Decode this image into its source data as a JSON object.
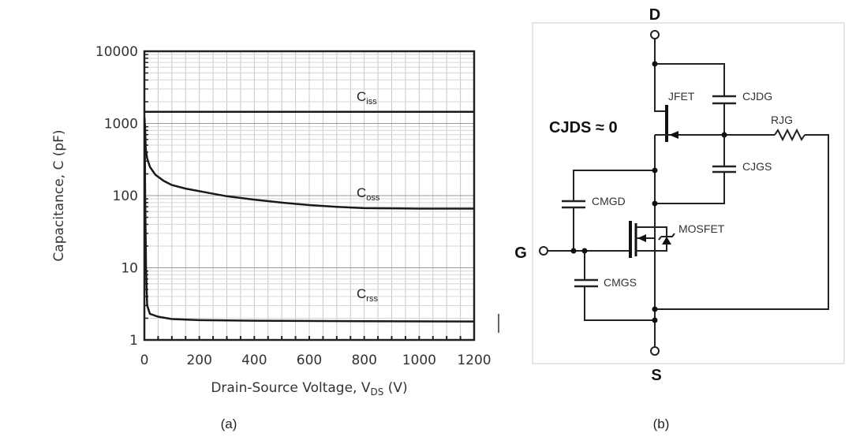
{
  "chart_data": {
    "type": "line",
    "panel_label": "(a)",
    "xlabel": "Drain-Source Voltage, V",
    "xlabel_sub": "DS",
    "xlabel_unit": " (V)",
    "ylabel": "Capacitance, C (pF)",
    "xlim": [
      0,
      1200
    ],
    "ylim": [
      1,
      10000
    ],
    "yscale": "log",
    "grid": true,
    "x_ticks": [
      "0",
      "200",
      "400",
      "600",
      "800",
      "1000",
      "1200"
    ],
    "y_ticks": [
      "1",
      "10",
      "100",
      "1000",
      "10000"
    ],
    "series": [
      {
        "name": "C",
        "sub": "iss",
        "x": [
          0,
          1200
        ],
        "y": [
          1450,
          1450
        ]
      },
      {
        "name": "C",
        "sub": "oss",
        "x": [
          2,
          5,
          10,
          20,
          40,
          70,
          100,
          150,
          200,
          300,
          400,
          500,
          600,
          700,
          800,
          1000,
          1200
        ],
        "y": [
          1000,
          450,
          330,
          250,
          195,
          160,
          140,
          125,
          115,
          98,
          88,
          80,
          74,
          70,
          67,
          66,
          66
        ]
      },
      {
        "name": "C",
        "sub": "rss",
        "x": [
          1,
          3,
          6,
          10,
          20,
          50,
          100,
          200,
          400,
          800,
          1200
        ],
        "y": [
          1200,
          100,
          10,
          3,
          2.3,
          2.1,
          1.95,
          1.88,
          1.85,
          1.82,
          1.8
        ]
      }
    ]
  },
  "diagram": {
    "panel_label": "(b)",
    "terminals": {
      "drain": "D",
      "gate": "G",
      "source": "S"
    },
    "annotation": "CJDS ≈ 0",
    "components": {
      "jfet": "JFET",
      "mosfet": "MOSFET",
      "cjdg": "CJDG",
      "cjgs": "CJGS",
      "rjg": "RJG",
      "cmgd": "CMGD",
      "cmgs": "CMGS"
    }
  }
}
